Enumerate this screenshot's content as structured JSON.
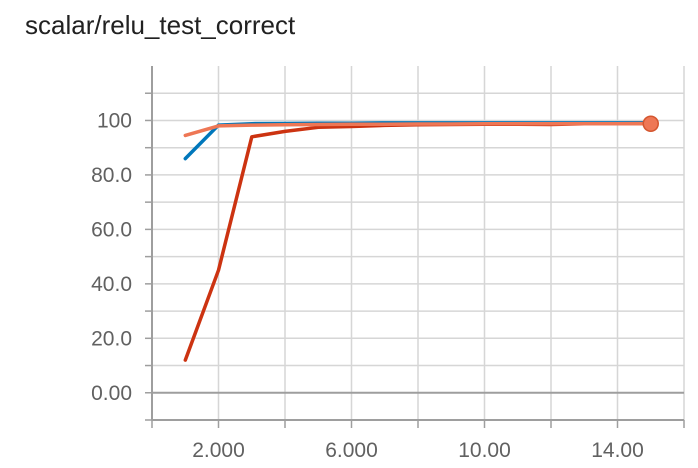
{
  "chart_data": {
    "type": "line",
    "title": "scalar/relu_test_correct",
    "xlabel": "",
    "ylabel": "",
    "xlim": [
      0,
      16
    ],
    "ylim": [
      -10,
      120
    ],
    "x_ticks": [
      2,
      6,
      10,
      14
    ],
    "x_tick_labels": [
      "2.000",
      "6.000",
      "10.00",
      "14.00"
    ],
    "y_ticks": [
      0,
      20,
      40,
      60,
      80,
      100
    ],
    "y_tick_labels": [
      "0.00",
      "20.0",
      "40.0",
      "60.0",
      "80.0",
      "100"
    ],
    "grid": true,
    "legend": "none",
    "series": [
      {
        "color": "#0077bb",
        "x": [
          1,
          2,
          3,
          4,
          5,
          6,
          7,
          8,
          9,
          10,
          11,
          12,
          13,
          14,
          15
        ],
        "values": [
          86,
          98.3,
          98.8,
          98.9,
          99,
          99,
          99.1,
          99.1,
          99.1,
          99.1,
          99.1,
          99.1,
          99.1,
          99.1,
          99.1
        ]
      },
      {
        "color": "#cc3311",
        "x": [
          1,
          2,
          3,
          4,
          5,
          6,
          7,
          8,
          9,
          10,
          11,
          12,
          13,
          14,
          15
        ],
        "values": [
          12,
          45,
          94,
          96,
          97.5,
          97.8,
          98.2,
          98.4,
          98.5,
          98.6,
          98.6,
          98.5,
          98.8,
          98.8,
          98.9
        ]
      },
      {
        "color": "#ee7755",
        "x": [
          1,
          2,
          3,
          4,
          5,
          6,
          7,
          8,
          9,
          10,
          11,
          12,
          13,
          14,
          15
        ],
        "values": [
          94.5,
          98,
          98.3,
          98.4,
          98.5,
          98.6,
          98.6,
          98.7,
          98.7,
          98.8,
          98.8,
          98.8,
          98.8,
          98.8,
          98.8
        ]
      }
    ],
    "end_marker": {
      "x": 15,
      "value": 98.8,
      "color": "#ee7755"
    }
  }
}
